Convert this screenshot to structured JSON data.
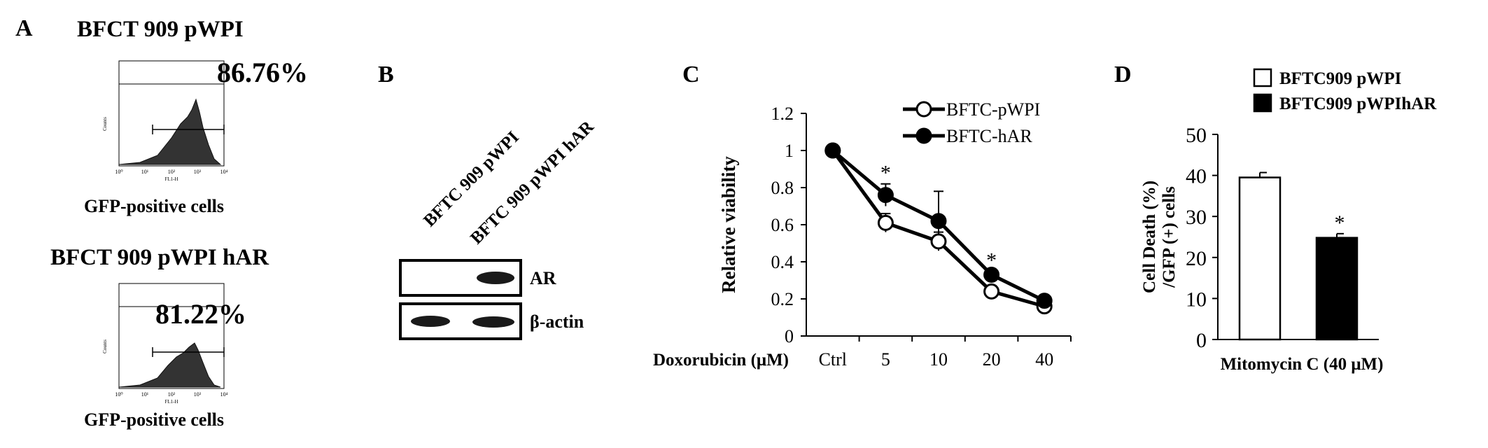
{
  "panels": {
    "a": {
      "letter": "A",
      "top_title": "BFCT 909 pWPI",
      "top_percent": "86.76%",
      "top_caption": "GFP-positive cells",
      "bottom_title": "BFCT 909 pWPI hAR",
      "bottom_percent": "81.22%",
      "bottom_caption": "GFP-positive cells",
      "histogram_ylabel": "Counts",
      "histogram_xlabel": "FL1-H",
      "histogram_xticks": [
        "10⁰",
        "10¹",
        "10²",
        "10³",
        "10⁴"
      ]
    },
    "b": {
      "letter": "B",
      "lanes": [
        "BFTC 909 pWPI",
        "BFTC 909 pWPI hAR"
      ],
      "bands": [
        "AR",
        "β-actin"
      ]
    },
    "c": {
      "letter": "C"
    },
    "d": {
      "letter": "D"
    }
  },
  "chart_data": [
    {
      "type": "line",
      "ylabel": "Relative  viability",
      "xlabel": "Doxorubicin (μM)",
      "categories": [
        "Ctrl",
        "5",
        "10",
        "20",
        "40"
      ],
      "ylim": [
        0,
        1.2
      ],
      "yticks": [
        "0",
        "0.2",
        "0.4",
        "0.6",
        "0.8",
        "1",
        "1.2"
      ],
      "series": [
        {
          "name": "BFTC-pWPI",
          "values": [
            1,
            0.61,
            0.51,
            0.24,
            0.16
          ],
          "errors": [
            0,
            0.05,
            0.05,
            0.02,
            0.01
          ],
          "marker": "open-circle"
        },
        {
          "name": "BFTC-hAR",
          "values": [
            1,
            0.76,
            0.62,
            0.33,
            0.19
          ],
          "errors": [
            0,
            0.06,
            0.16,
            0.02,
            0.01
          ],
          "marker": "filled-circle"
        }
      ],
      "annotations": [
        {
          "category": "5",
          "text": "*"
        },
        {
          "category": "20",
          "text": "*"
        }
      ],
      "legend_position": "top-right",
      "grid": false
    },
    {
      "type": "bar",
      "ylabel_line1": "Cell Death (%)",
      "ylabel_line2": "/GFP (+) cells",
      "xlabel": "Mitomycin C (40 μM)",
      "ylim": [
        0,
        50
      ],
      "yticks": [
        "0",
        "10",
        "20",
        "30",
        "40",
        "50"
      ],
      "series": [
        {
          "name": "BFTC909 pWPI",
          "value": 39.5,
          "error": 1.2,
          "fill": "#ffffff"
        },
        {
          "name": "BFTC909 pWPIhAR",
          "value": 24.8,
          "error": 1.0,
          "fill": "#000000"
        }
      ],
      "annotations": [
        {
          "series": "BFTC909 pWPIhAR",
          "text": "*"
        }
      ],
      "legend_position": "top",
      "grid": false
    }
  ]
}
